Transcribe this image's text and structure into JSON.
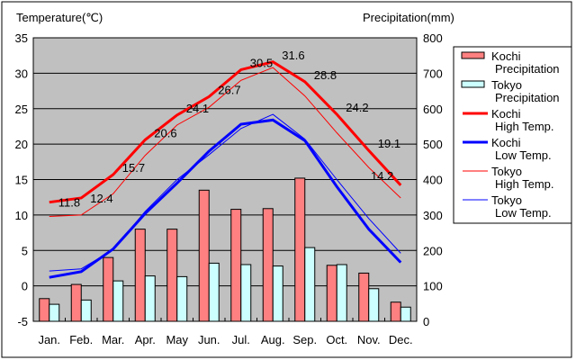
{
  "chart_data": {
    "type": "bar+line",
    "categories": [
      "Jan.",
      "Feb.",
      "Mar.",
      "Apr.",
      "May",
      "Jun.",
      "Jul.",
      "Aug.",
      "Sep.",
      "Oct.",
      "Nov.",
      "Dec."
    ],
    "ylabel": "Temperature(℃)",
    "y2label": "Precipitation(mm)",
    "ylim": [
      -5,
      35
    ],
    "y2lim": [
      0,
      800
    ],
    "yticks": [
      "35",
      "30",
      "25",
      "20",
      "15",
      "10",
      "5",
      "0",
      "-5"
    ],
    "y2ticks": [
      "800",
      "700",
      "600",
      "500",
      "400",
      "300",
      "200",
      "100",
      "0"
    ],
    "grid": true,
    "legend_position": "right",
    "series": [
      {
        "name": "Kochi Precipitation",
        "label1": "Kochi",
        "label2": "Precipitation",
        "kind": "bar",
        "axis": "y2",
        "color": "#ff8080",
        "values": [
          64,
          104,
          180,
          260,
          260,
          370,
          316,
          318,
          404,
          158,
          136,
          54
        ]
      },
      {
        "name": "Tokyo Precipitation",
        "label1": "Tokyo",
        "label2": "Precipitation",
        "kind": "bar",
        "axis": "y2",
        "color": "#ccffff",
        "values": [
          48,
          60,
          114,
          128,
          126,
          164,
          160,
          156,
          208,
          160,
          92,
          40
        ]
      },
      {
        "name": "Kochi High Temp.",
        "label1": "Kochi",
        "label2": "High Temp.",
        "kind": "line",
        "width": 3,
        "color": "#ff0000",
        "values": [
          11.8,
          12.4,
          15.7,
          20.6,
          24.1,
          26.7,
          30.5,
          31.6,
          28.8,
          24.2,
          19.1,
          14.2
        ],
        "labels": [
          "11.8",
          "12.4",
          "15.7",
          "20.6",
          "24.1",
          "26.7",
          "30.5",
          "31.6",
          "28.8",
          "24.2",
          "19.1",
          "14.2"
        ]
      },
      {
        "name": "Kochi Low Temp.",
        "label1": "Kochi",
        "label2": "Low Temp.",
        "kind": "line",
        "width": 3,
        "color": "#0000ff",
        "values": [
          1.2,
          2.0,
          5.2,
          10.2,
          14.5,
          19.0,
          22.8,
          23.4,
          20.5,
          14.0,
          8.0,
          3.3
        ]
      },
      {
        "name": "Tokyo High Temp.",
        "label1": "Tokyo",
        "label2": "High Temp.",
        "kind": "line",
        "width": 1,
        "color": "#ff0000",
        "values": [
          9.8,
          10.0,
          13.0,
          18.4,
          22.7,
          25.2,
          29.0,
          30.8,
          26.8,
          21.6,
          16.7,
          12.4
        ]
      },
      {
        "name": "Tokyo Low Temp.",
        "label1": "Tokyo",
        "label2": "Low Temp.",
        "kind": "line",
        "width": 1,
        "color": "#0000ff",
        "values": [
          2.1,
          2.4,
          5.1,
          10.5,
          15.0,
          18.5,
          22.2,
          24.2,
          20.7,
          15.0,
          9.5,
          4.6
        ]
      }
    ]
  }
}
